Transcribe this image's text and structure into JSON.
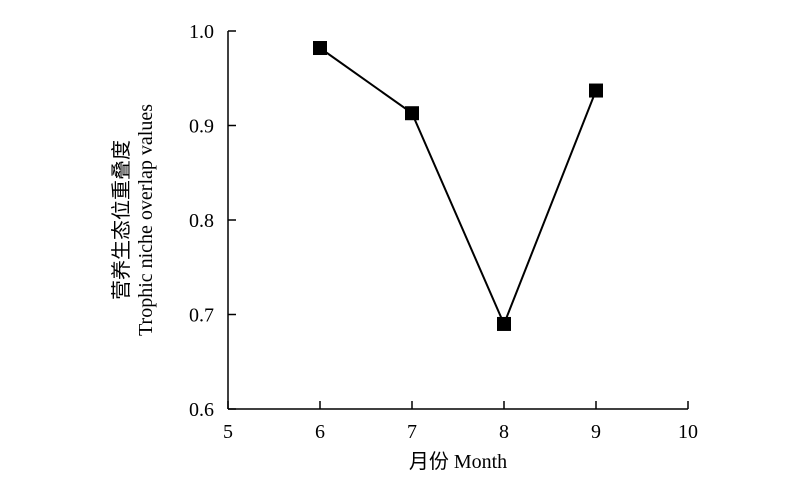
{
  "chart_data": {
    "type": "line",
    "title": "",
    "xlabel": "月份 Month",
    "ylabel_zh": "营养生态位重叠度",
    "ylabel_en": "Trophic niche overlap values",
    "xlim": [
      5,
      10
    ],
    "ylim": [
      0.6,
      1.0
    ],
    "xticks": [
      "5",
      "6",
      "7",
      "8",
      "9",
      "10"
    ],
    "yticks": [
      "0.6",
      "0.7",
      "0.8",
      "0.9",
      "1.0"
    ],
    "grid": false,
    "legend": "none",
    "marker": "square",
    "color": "#000000",
    "series": [
      {
        "x": [
          6,
          7,
          8,
          9
        ],
        "y": [
          0.982,
          0.913,
          0.69,
          0.937
        ]
      }
    ]
  }
}
